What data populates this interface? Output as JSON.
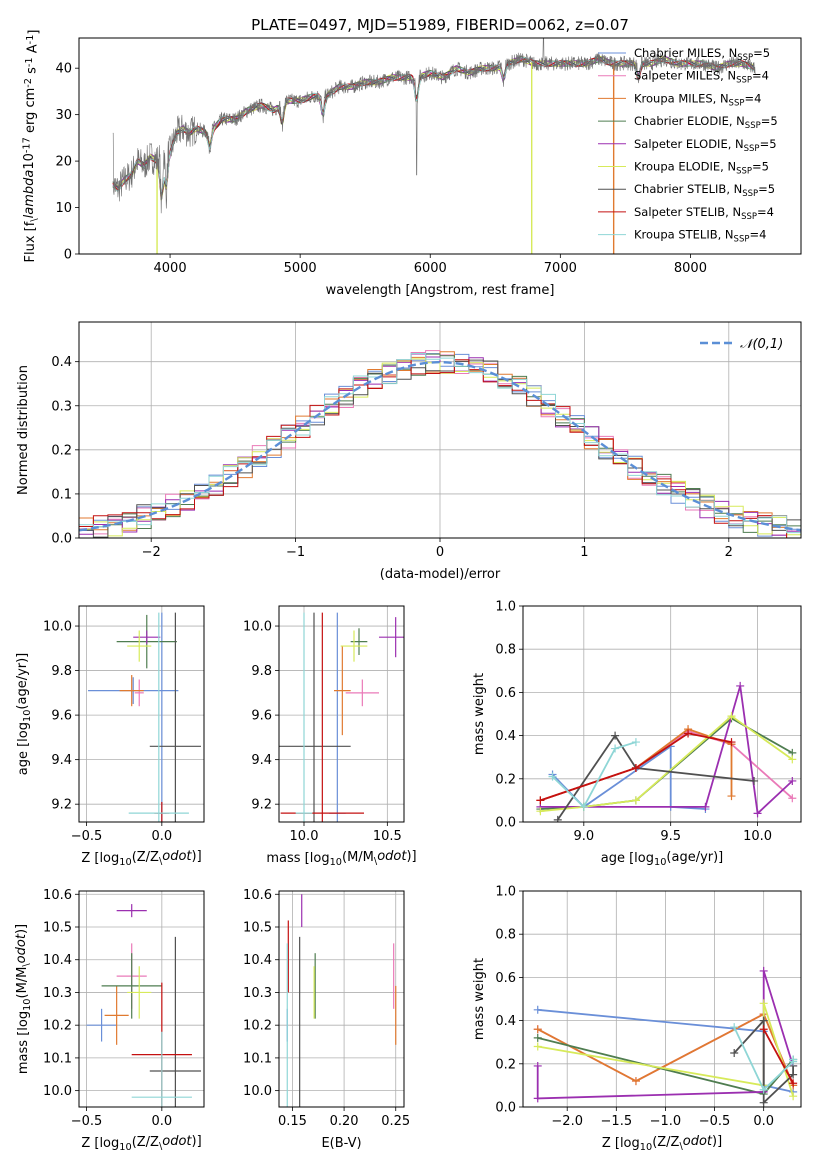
{
  "title": "PLATE=0497, MJD=51989, FIBERID=0062, z=0.07",
  "models": [
    {
      "name": "Chabrier MILES, N$_{SSP}$=5",
      "label_main": "Chabrier MILES, N",
      "label_sub": "SSP",
      "label_end": "=5",
      "color": "#6a8fd8"
    },
    {
      "name": "Salpeter MILES, N$_{SSP}$=4",
      "label_main": "Salpeter MILES, N",
      "label_sub": "SSP",
      "label_end": "=4",
      "color": "#ea7ab8"
    },
    {
      "name": "Kroupa MILES, N$_{SSP}$=4",
      "label_main": "Kroupa MILES, N",
      "label_sub": "SSP",
      "label_end": "=4",
      "color": "#e07a30"
    },
    {
      "name": "Chabrier ELODIE, N$_{SSP}$=5",
      "label_main": "Chabrier ELODIE, N",
      "label_sub": "SSP",
      "label_end": "=5",
      "color": "#4f7d50"
    },
    {
      "name": "Salpeter ELODIE, N$_{SSP}$=5",
      "label_main": "Salpeter ELODIE, N",
      "label_sub": "SSP",
      "label_end": "=5",
      "color": "#9b2fb0"
    },
    {
      "name": "Kroupa ELODIE, N$_{SSP}$=5",
      "label_main": "Kroupa ELODIE, N",
      "label_sub": "SSP",
      "label_end": "=5",
      "color": "#d7ea5a"
    },
    {
      "name": "Chabrier STELIB, N$_{SSP}$=5",
      "label_main": "Chabrier STELIB, N",
      "label_sub": "SSP",
      "label_end": "=5",
      "color": "#505050"
    },
    {
      "name": "Salpeter STELIB, N$_{SSP}$=4",
      "label_main": "Salpeter STELIB, N",
      "label_sub": "SSP",
      "label_end": "=4",
      "color": "#c41010"
    },
    {
      "name": "Kroupa STELIB, N$_{SSP}$=4",
      "label_main": "Kroupa STELIB, N",
      "label_sub": "SSP",
      "label_end": "=4",
      "color": "#8fd6d6"
    }
  ],
  "chart_data": [
    {
      "id": "spectrum",
      "type": "line",
      "xlabel": "wavelength [Angstrom, rest frame]",
      "ylabel": "Flux [f$_\\lambda$10$^{-17}$ erg cm$^{-2}$ s$^{-1}$ A$^{-1}$]",
      "xlim": [
        3300,
        8850
      ],
      "ylim": [
        0,
        46.5
      ],
      "xticks": [
        4000,
        5000,
        6000,
        7000,
        8000
      ],
      "yticks": [
        0,
        10,
        20,
        30,
        40
      ],
      "data_color": "#707070",
      "data_points": [
        [
          3560,
          15
        ],
        [
          3600,
          14
        ],
        [
          3650,
          16
        ],
        [
          3700,
          17
        ],
        [
          3750,
          20
        ],
        [
          3800,
          19
        ],
        [
          3850,
          21
        ],
        [
          3900,
          20
        ],
        [
          3950,
          23
        ],
        [
          4000,
          22
        ],
        [
          4050,
          26
        ],
        [
          4100,
          27
        ],
        [
          4150,
          26
        ],
        [
          4200,
          27
        ],
        [
          4300,
          26
        ],
        [
          4400,
          29
        ],
        [
          4500,
          29
        ],
        [
          4600,
          31
        ],
        [
          4700,
          32
        ],
        [
          4800,
          31
        ],
        [
          4900,
          33
        ],
        [
          5000,
          33
        ],
        [
          5100,
          34
        ],
        [
          5200,
          34
        ],
        [
          5300,
          36
        ],
        [
          5400,
          36
        ],
        [
          5500,
          37
        ],
        [
          5600,
          37
        ],
        [
          5700,
          38
        ],
        [
          5800,
          38
        ],
        [
          5900,
          38
        ],
        [
          6000,
          39
        ],
        [
          6100,
          38
        ],
        [
          6200,
          40
        ],
        [
          6300,
          39
        ],
        [
          6400,
          40
        ],
        [
          6500,
          40
        ],
        [
          6600,
          41
        ],
        [
          6700,
          42
        ],
        [
          6800,
          41
        ],
        [
          6900,
          41
        ],
        [
          7000,
          41
        ],
        [
          7100,
          41
        ],
        [
          7200,
          41
        ],
        [
          7300,
          42
        ],
        [
          7400,
          41
        ],
        [
          7500,
          41
        ],
        [
          7600,
          41
        ],
        [
          7700,
          41
        ],
        [
          7800,
          42
        ],
        [
          7900,
          41
        ],
        [
          8000,
          41
        ],
        [
          8100,
          41
        ],
        [
          8200,
          40
        ],
        [
          8300,
          41
        ],
        [
          8400,
          41
        ],
        [
          8500,
          40
        ]
      ],
      "model_spikes": [
        [
          3900,
          0
        ],
        [
          6780,
          0
        ],
        [
          7410,
          0
        ]
      ],
      "legend_position": "right"
    },
    {
      "id": "residuals",
      "type": "area",
      "xlabel": "(data-model)/error",
      "ylabel": "Normed distribution",
      "xlim": [
        -2.5,
        2.5
      ],
      "ylim": [
        0,
        0.49
      ],
      "xticks": [
        -2,
        -1,
        0,
        1,
        2
      ],
      "yticks": [
        0.0,
        0.1,
        0.2,
        0.3,
        0.4
      ],
      "grid": true,
      "gaussian_label": "$\\mathcal{N}(0,1)$",
      "gaussian_color": "#5b8fd6",
      "legend_position": "top-right"
    },
    {
      "id": "age-vs-Z",
      "type": "scatter",
      "xlabel": "Z [log$_{10}$(Z/Z$_\\odot$)]",
      "ylabel": "age  [log$_{10}$(age/yr)]",
      "xlim": [
        -0.55,
        0.28
      ],
      "ylim": [
        9.12,
        10.09
      ],
      "xticks": [
        -0.5,
        0.0
      ],
      "yticks": [
        9.2,
        9.4,
        9.6,
        9.8,
        10.0
      ],
      "grid": true,
      "points": [
        {
          "m": 0,
          "x": -0.19,
          "y": 9.71,
          "xe": 0.3,
          "ye": 0.06
        },
        {
          "m": 0,
          "x": 0.0,
          "y": 9.16,
          "xe": 0.03,
          "ye": 0.9
        },
        {
          "m": 1,
          "x": -0.15,
          "y": 9.7,
          "xe": 0.03,
          "ye": 0.06
        },
        {
          "m": 2,
          "x": -0.2,
          "y": 9.71,
          "xe": 0.08,
          "ye": 0.07
        },
        {
          "m": 3,
          "x": -0.1,
          "y": 9.93,
          "xe": 0.2,
          "ye": 0.12
        },
        {
          "m": 4,
          "x": -0.1,
          "y": 9.95,
          "xe": 0.09,
          "ye": 0.03
        },
        {
          "m": 5,
          "x": -0.15,
          "y": 9.91,
          "xe": 0.08,
          "ye": 0.07
        },
        {
          "m": 6,
          "x": 0.09,
          "y": 9.46,
          "xe": 0.17,
          "ye": 0.6
        },
        {
          "m": 7,
          "x": 0.0,
          "y": 9.16,
          "xe": 0.05,
          "ye": 0.05
        },
        {
          "m": 8,
          "x": -0.02,
          "y": 9.16,
          "xe": 0.2,
          "ye": 0.9
        }
      ]
    },
    {
      "id": "age-vs-mass",
      "type": "scatter",
      "xlabel": "mass [log$_{10}$(M/M$_\\odot$)]",
      "xlim": [
        9.85,
        10.6
      ],
      "ylim": [
        9.12,
        10.09
      ],
      "xticks": [
        10.0,
        10.5
      ],
      "yticks": [
        9.2,
        9.4,
        9.6,
        9.8,
        10.0
      ],
      "grid": true,
      "points": [
        {
          "m": 0,
          "x": 10.2,
          "y": 9.16,
          "xe": 0.05,
          "ye": 0.9
        },
        {
          "m": 1,
          "x": 10.35,
          "y": 9.7,
          "xe": 0.1,
          "ye": 0.06
        },
        {
          "m": 2,
          "x": 10.23,
          "y": 9.71,
          "xe": 0.05,
          "ye": 0.2
        },
        {
          "m": 3,
          "x": 10.33,
          "y": 9.93,
          "xe": 0.05,
          "ye": 0.06
        },
        {
          "m": 4,
          "x": 10.55,
          "y": 9.95,
          "xe": 0.1,
          "ye": 0.09
        },
        {
          "m": 5,
          "x": 10.3,
          "y": 9.91,
          "xe": 0.08,
          "ye": 0.07
        },
        {
          "m": 6,
          "x": 10.06,
          "y": 9.46,
          "xe": 0.22,
          "ye": 0.6
        },
        {
          "m": 7,
          "x": 10.11,
          "y": 9.16,
          "xe": 0.25,
          "ye": 0.9
        },
        {
          "m": 8,
          "x": 10.0,
          "y": 9.16,
          "xe": 0.05,
          "ye": 0.9
        }
      ]
    },
    {
      "id": "mass-weight-vs-age",
      "type": "line",
      "xlabel": "age  [log$_{10}$(age/yr)]",
      "ylabel": "mass weight",
      "xlim": [
        8.65,
        10.25
      ],
      "ylim": [
        0,
        1.0
      ],
      "xticks": [
        9.0,
        9.5,
        10.0
      ],
      "yticks": [
        0.0,
        0.2,
        0.4,
        0.6,
        0.8,
        1.0
      ],
      "grid": true,
      "series": [
        {
          "m": 0,
          "x": [
            8.82,
            9.0,
            9.5,
            9.5,
            9.7
          ],
          "y": [
            0.22,
            0.07,
            0.35,
            0.07,
            0.06
          ]
        },
        {
          "m": 1,
          "x": [
            8.75,
            9.3,
            9.6,
            9.85,
            10.2
          ],
          "y": [
            0.1,
            0.25,
            0.42,
            0.36,
            0.11
          ]
        },
        {
          "m": 2,
          "x": [
            8.75,
            9.3,
            9.6,
            9.85,
            9.85
          ],
          "y": [
            0.1,
            0.25,
            0.43,
            0.36,
            0.12
          ]
        },
        {
          "m": 3,
          "x": [
            8.75,
            9.0,
            9.3,
            9.85,
            10.2
          ],
          "y": [
            0.06,
            0.07,
            0.1,
            0.48,
            0.32
          ]
        },
        {
          "m": 4,
          "x": [
            8.75,
            9.7,
            9.9,
            10.0,
            10.2
          ],
          "y": [
            0.07,
            0.07,
            0.63,
            0.04,
            0.19
          ]
        },
        {
          "m": 5,
          "x": [
            8.75,
            9.0,
            9.3,
            9.85,
            10.2
          ],
          "y": [
            0.05,
            0.07,
            0.1,
            0.49,
            0.29
          ]
        },
        {
          "m": 6,
          "x": [
            8.85,
            9.18,
            9.3,
            9.98
          ],
          "y": [
            0.01,
            0.4,
            0.25,
            0.19
          ]
        },
        {
          "m": 7,
          "x": [
            8.75,
            9.3,
            9.6,
            9.85
          ],
          "y": [
            0.1,
            0.25,
            0.41,
            0.37
          ]
        },
        {
          "m": 8,
          "x": [
            8.82,
            9.0,
            9.18,
            9.3
          ],
          "y": [
            0.21,
            0.07,
            0.34,
            0.37
          ]
        }
      ]
    },
    {
      "id": "mass-vs-Z",
      "type": "scatter",
      "xlabel": "Z [log$_{10}$(Z/Z$_\\odot$)]",
      "ylabel": "mass [log$_{10}$(M/M$_\\odot$)]",
      "xlim": [
        -0.55,
        0.28
      ],
      "ylim": [
        9.95,
        10.61
      ],
      "xticks": [
        -0.5,
        0.0
      ],
      "yticks": [
        10.0,
        10.1,
        10.2,
        10.3,
        10.4,
        10.5,
        10.6
      ],
      "grid": true,
      "points": [
        {
          "m": 0,
          "x": -0.4,
          "y": 10.2,
          "xe": 0.1,
          "ye": 0.05
        },
        {
          "m": 1,
          "x": -0.2,
          "y": 10.35,
          "xe": 0.1,
          "ye": 0.1
        },
        {
          "m": 2,
          "x": -0.3,
          "y": 10.23,
          "xe": 0.08,
          "ye": 0.09
        },
        {
          "m": 3,
          "x": -0.2,
          "y": 10.32,
          "xe": 0.2,
          "ye": 0.1
        },
        {
          "m": 4,
          "x": -0.2,
          "y": 10.55,
          "xe": 0.1,
          "ye": 0.02
        },
        {
          "m": 5,
          "x": -0.15,
          "y": 10.3,
          "xe": 0.08,
          "ye": 0.08
        },
        {
          "m": 6,
          "x": 0.09,
          "y": 10.06,
          "xe": 0.17,
          "ye": 0.41
        },
        {
          "m": 7,
          "x": 0.0,
          "y": 10.11,
          "xe": 0.2,
          "ye": 0.22
        },
        {
          "m": 8,
          "x": 0.0,
          "y": 9.98,
          "xe": 0.2,
          "ye": 0.2
        }
      ]
    },
    {
      "id": "mass-vs-ebv",
      "type": "scatter",
      "xlabel": "E(B-V)",
      "xlim": [
        0.137,
        0.258
      ],
      "ylim": [
        9.95,
        10.61
      ],
      "xticks": [
        0.15,
        0.2,
        0.25
      ],
      "yticks": [
        10.0,
        10.1,
        10.2,
        10.3,
        10.4,
        10.5,
        10.6
      ],
      "grid": true,
      "points": [
        {
          "m": 0,
          "x": 0.145,
          "y": 10.2,
          "ye": 0.05
        },
        {
          "m": 1,
          "x": 0.248,
          "y": 10.35,
          "ye": 0.1
        },
        {
          "m": 2,
          "x": 0.25,
          "y": 10.23,
          "ye": 0.09
        },
        {
          "m": 3,
          "x": 0.172,
          "y": 10.32,
          "ye": 0.1
        },
        {
          "m": 4,
          "x": 0.159,
          "y": 10.55,
          "ye": 0.05
        },
        {
          "m": 5,
          "x": 0.171,
          "y": 10.3,
          "ye": 0.08
        },
        {
          "m": 6,
          "x": 0.157,
          "y": 10.06,
          "ye": 0.41
        },
        {
          "m": 7,
          "x": 0.146,
          "y": 10.41,
          "ye": 0.11
        },
        {
          "m": 8,
          "x": 0.145,
          "y": 10.2,
          "ye": 0.25
        }
      ]
    },
    {
      "id": "mass-weight-vs-Z",
      "type": "line",
      "xlabel": "Z [log$_{10}$(Z/Z$_\\odot$)]",
      "ylabel": "mass weight",
      "xlim": [
        -2.45,
        0.38
      ],
      "ylim": [
        0,
        1.0
      ],
      "xticks": [
        -2.0,
        -1.5,
        -1.0,
        -0.5,
        0.0
      ],
      "yticks": [
        0.0,
        0.2,
        0.4,
        0.6,
        0.8,
        1.0
      ],
      "grid": true,
      "series": [
        {
          "m": 0,
          "x": [
            -2.3,
            0.0,
            0.0,
            0.3
          ],
          "y": [
            0.45,
            0.35,
            0.1,
            0.07
          ]
        },
        {
          "m": 1,
          "x": [
            -2.3,
            -1.3,
            0.0,
            0.3
          ],
          "y": [
            0.36,
            0.12,
            0.43,
            0.1
          ]
        },
        {
          "m": 2,
          "x": [
            -2.3,
            -1.3,
            0.0,
            0.3
          ],
          "y": [
            0.36,
            0.12,
            0.43,
            0.1
          ]
        },
        {
          "m": 3,
          "x": [
            -2.3,
            0.0,
            0.3
          ],
          "y": [
            0.32,
            0.06,
            0.22
          ]
        },
        {
          "m": 4,
          "x": [
            -2.3,
            -2.3,
            0.0,
            0.0,
            0.3
          ],
          "y": [
            0.19,
            0.04,
            0.07,
            0.63,
            0.19
          ]
        },
        {
          "m": 5,
          "x": [
            -2.3,
            0.0,
            0.0,
            0.3
          ],
          "y": [
            0.28,
            0.1,
            0.48,
            0.05
          ]
        },
        {
          "m": 6,
          "x": [
            -0.3,
            0.0,
            0.0,
            0.3,
            0.3
          ],
          "y": [
            0.25,
            0.4,
            0.02,
            0.15,
            0.19
          ]
        },
        {
          "m": 7,
          "x": [
            0.0,
            0.3
          ],
          "y": [
            0.36,
            0.11
          ]
        },
        {
          "m": 8,
          "x": [
            -0.3,
            0.0,
            0.3,
            0.3
          ],
          "y": [
            0.37,
            0.08,
            0.21,
            0.22
          ]
        }
      ]
    }
  ]
}
